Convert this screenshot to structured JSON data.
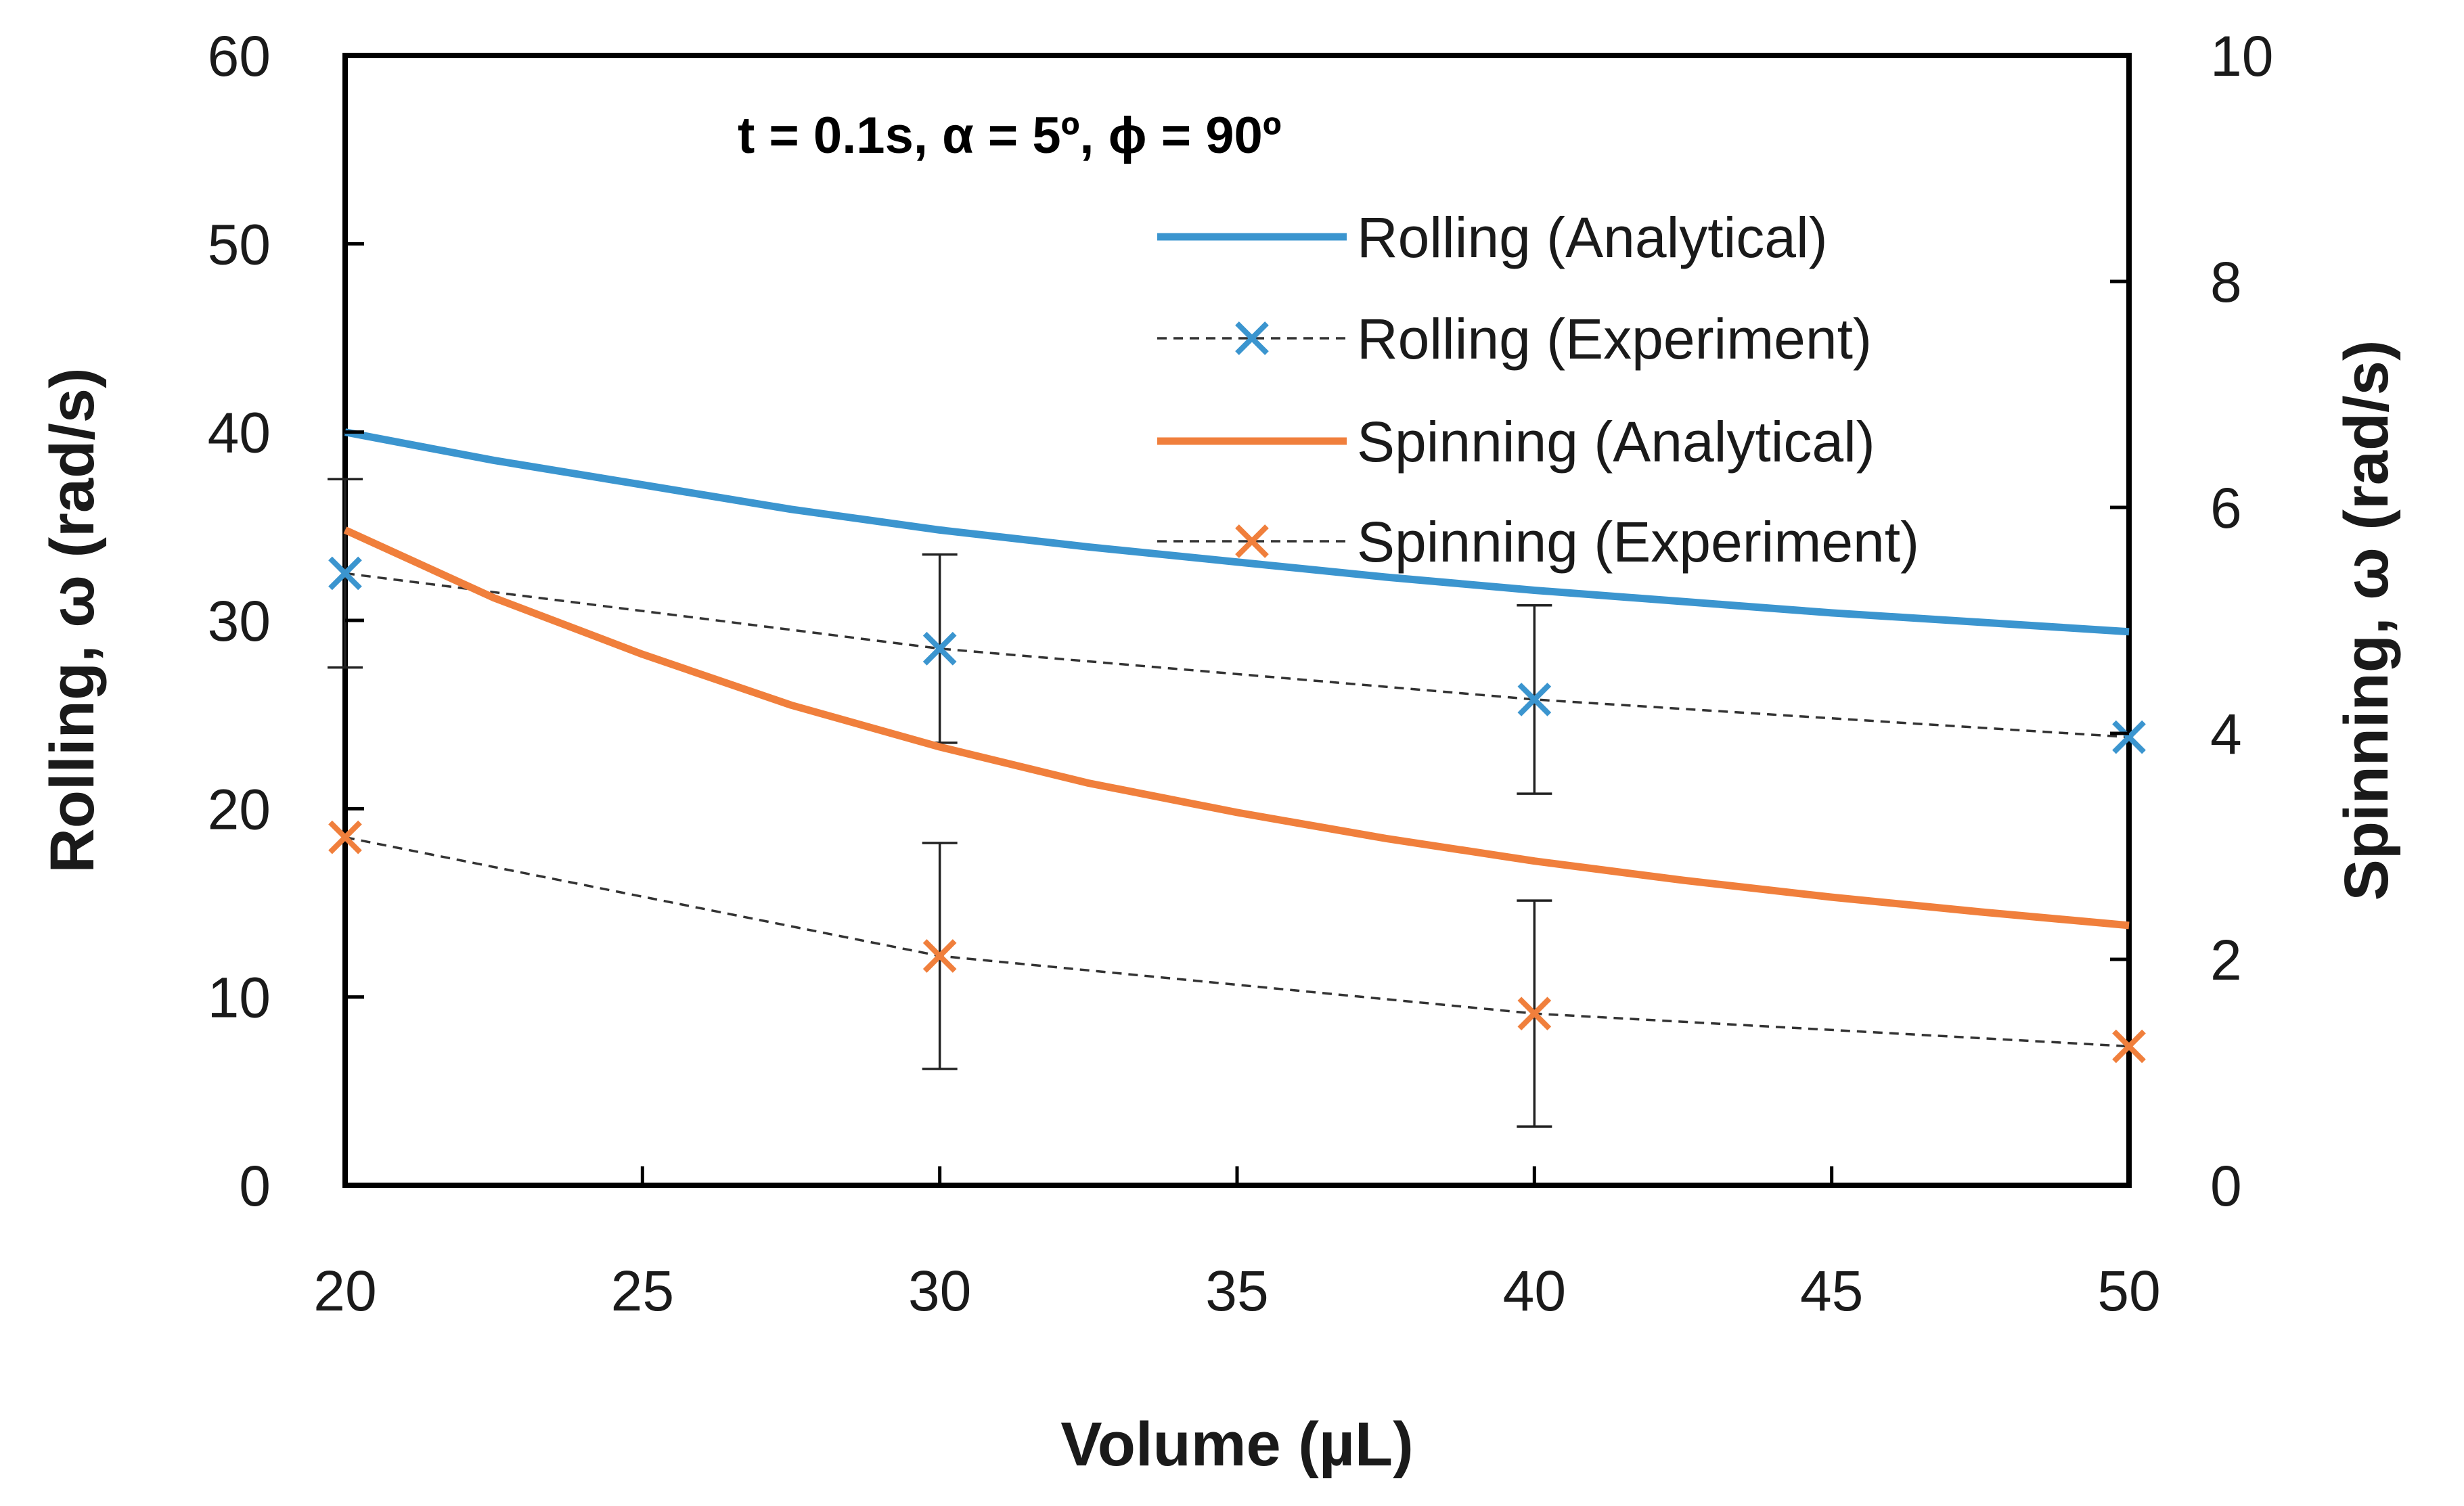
{
  "chart_data": {
    "type": "line",
    "annotation": "t = 0.1s, α  = 5º, ϕ  = 90º",
    "xlabel": "Volume (µL)",
    "ylabel_left": "Rolling, ω (rad/s)",
    "ylabel_right": "Spinning,  ω (rad/s)",
    "xlim": [
      20,
      50
    ],
    "ylim_left": [
      0,
      60
    ],
    "ylim_right": [
      0,
      10
    ],
    "x_ticks": [
      "20",
      "25",
      "30",
      "35",
      "40",
      "45",
      "50"
    ],
    "y_left_ticks": [
      "0",
      "10",
      "20",
      "30",
      "40",
      "50",
      "60"
    ],
    "y_right_ticks": [
      "0",
      "2",
      "4",
      "6",
      "8",
      "10"
    ],
    "grid": false,
    "legend_position": "top-right",
    "series": [
      {
        "name": "Rolling (Analytical)",
        "axis": "left",
        "style": "solid",
        "color": "#3b95cf",
        "x": [
          20,
          22.5,
          25,
          27.5,
          30,
          32.5,
          35,
          37.5,
          40,
          42.5,
          45,
          47.5,
          50
        ],
        "y": [
          40.0,
          38.5,
          37.2,
          35.9,
          34.8,
          33.9,
          33.1,
          32.3,
          31.6,
          31.0,
          30.4,
          29.9,
          29.4
        ]
      },
      {
        "name": "Rolling (Experiment)",
        "axis": "left",
        "style": "dashed-markers",
        "color": "#3b95cf",
        "x": [
          20,
          30,
          40,
          50
        ],
        "y": [
          32.5,
          28.5,
          25.8,
          23.8
        ],
        "error": [
          5.0,
          5.0,
          5.0,
          0
        ]
      },
      {
        "name": "Spinning (Analytical)",
        "axis": "right",
        "style": "solid",
        "color": "#f07f3c",
        "x": [
          20,
          22.5,
          25,
          27.5,
          30,
          32.5,
          35,
          37.5,
          40,
          42.5,
          45,
          47.5,
          50
        ],
        "y": [
          5.8,
          5.2,
          4.7,
          4.25,
          3.88,
          3.56,
          3.3,
          3.07,
          2.87,
          2.7,
          2.55,
          2.42,
          2.3
        ]
      },
      {
        "name": "Spinning (Experiment)",
        "axis": "right",
        "style": "dashed-markers",
        "color": "#f07f3c",
        "x": [
          20,
          30,
          40,
          50
        ],
        "y": [
          3.08,
          2.03,
          1.52,
          1.23
        ],
        "error": [
          0,
          1.0,
          1.0,
          0
        ]
      }
    ]
  }
}
